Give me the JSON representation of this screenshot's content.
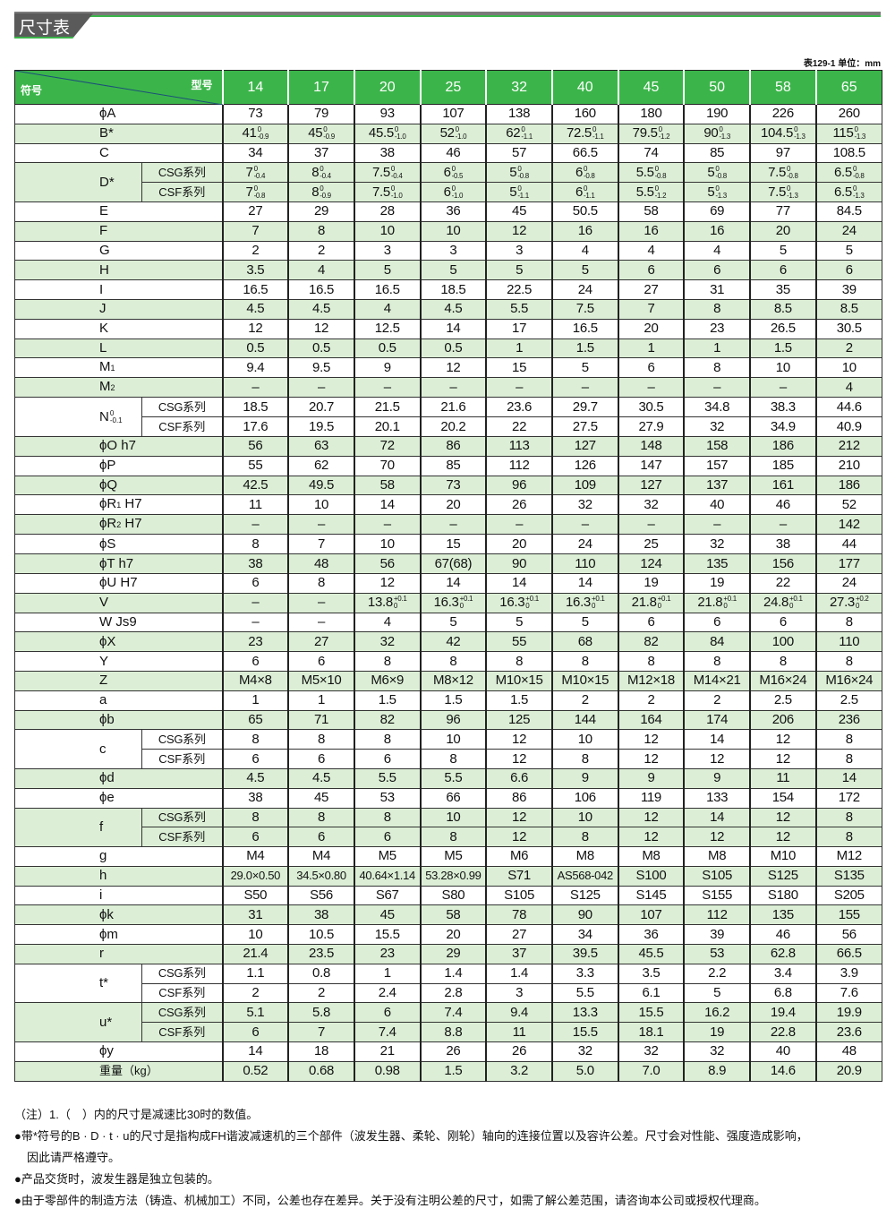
{
  "section_title": "尺寸表",
  "table_note": "表129-1 单位：mm",
  "header": {
    "model_label": "型号",
    "symbol_label": "符号",
    "models": [
      "14",
      "17",
      "20",
      "25",
      "32",
      "40",
      "45",
      "50",
      "58",
      "65"
    ]
  },
  "colors": {
    "header": "#3bb54a",
    "stripe": "#dcefd6",
    "banner": "#5a5a5a"
  },
  "rows": [
    {
      "label": {
        "t": "ϕA"
      },
      "values": [
        "73",
        "79",
        "93",
        "107",
        "138",
        "160",
        "180",
        "190",
        "226",
        "260"
      ]
    },
    {
      "label": {
        "t": "B*"
      },
      "values": [
        {
          "v": "41",
          "up": "0",
          "lo": "-0.9"
        },
        {
          "v": "45",
          "up": "0",
          "lo": "-0.9"
        },
        {
          "v": "45.5",
          "up": "0",
          "lo": "-1.0"
        },
        {
          "v": "52",
          "up": "0",
          "lo": "-1.0"
        },
        {
          "v": "62",
          "up": "0",
          "lo": "-1.1"
        },
        {
          "v": "72.5",
          "up": "0",
          "lo": "-1.1"
        },
        {
          "v": "79.5",
          "up": "0",
          "lo": "-1.2"
        },
        {
          "v": "90",
          "up": "0",
          "lo": "-1.3"
        },
        {
          "v": "104.5",
          "up": "0",
          "lo": "-1.3"
        },
        {
          "v": "115",
          "up": "0",
          "lo": "-1.3"
        }
      ]
    },
    {
      "label": {
        "t": "C"
      },
      "values": [
        "34",
        "37",
        "38",
        "46",
        "57",
        "66.5",
        "74",
        "85",
        "97",
        "108.5"
      ]
    },
    {
      "label": {
        "t": "D*"
      },
      "series": [
        {
          "name": "CSG系列",
          "values": [
            {
              "v": "7",
              "up": "0",
              "lo": "-0.4"
            },
            {
              "v": "8",
              "up": "0",
              "lo": "-0.4"
            },
            {
              "v": "7.5",
              "up": "0",
              "lo": "-0.4"
            },
            {
              "v": "6",
              "up": "0",
              "lo": "-0.5"
            },
            {
              "v": "5",
              "up": "0",
              "lo": "-0.8"
            },
            {
              "v": "6",
              "up": "0",
              "lo": "-0.8"
            },
            {
              "v": "5.5",
              "up": "0",
              "lo": "-0.8"
            },
            {
              "v": "5",
              "up": "0",
              "lo": "-0.8"
            },
            {
              "v": "7.5",
              "up": "0",
              "lo": "-0.8"
            },
            {
              "v": "6.5",
              "up": "0",
              "lo": "-0.8"
            }
          ]
        },
        {
          "name": "CSF系列",
          "values": [
            {
              "v": "7",
              "up": "0",
              "lo": "-0.8"
            },
            {
              "v": "8",
              "up": "0",
              "lo": "-0.9"
            },
            {
              "v": "7.5",
              "up": "0",
              "lo": "-1.0"
            },
            {
              "v": "6",
              "up": "0",
              "lo": "-1.0"
            },
            {
              "v": "5",
              "up": "0",
              "lo": "-1.1"
            },
            {
              "v": "6",
              "up": "0",
              "lo": "-1.1"
            },
            {
              "v": "5.5",
              "up": "0",
              "lo": "-1.2"
            },
            {
              "v": "5",
              "up": "0",
              "lo": "-1.3"
            },
            {
              "v": "7.5",
              "up": "0",
              "lo": "-1.3"
            },
            {
              "v": "6.5",
              "up": "0",
              "lo": "-1.3"
            }
          ]
        }
      ]
    },
    {
      "label": {
        "t": "E"
      },
      "values": [
        "27",
        "29",
        "28",
        "36",
        "45",
        "50.5",
        "58",
        "69",
        "77",
        "84.5"
      ]
    },
    {
      "label": {
        "t": "F"
      },
      "values": [
        "7",
        "8",
        "10",
        "10",
        "12",
        "16",
        "16",
        "16",
        "20",
        "24"
      ]
    },
    {
      "label": {
        "t": "G"
      },
      "values": [
        "2",
        "2",
        "3",
        "3",
        "3",
        "4",
        "4",
        "4",
        "5",
        "5"
      ]
    },
    {
      "label": {
        "t": "H"
      },
      "values": [
        "3.5",
        "4",
        "5",
        "5",
        "5",
        "5",
        "6",
        "6",
        "6",
        "6"
      ]
    },
    {
      "label": {
        "t": "I"
      },
      "values": [
        "16.5",
        "16.5",
        "16.5",
        "18.5",
        "22.5",
        "24",
        "27",
        "31",
        "35",
        "39"
      ]
    },
    {
      "label": {
        "t": "J"
      },
      "values": [
        "4.5",
        "4.5",
        "4",
        "4.5",
        "5.5",
        "7.5",
        "7",
        "8",
        "8.5",
        "8.5"
      ]
    },
    {
      "label": {
        "t": "K"
      },
      "values": [
        "12",
        "12",
        "12.5",
        "14",
        "17",
        "16.5",
        "20",
        "23",
        "26.5",
        "30.5"
      ]
    },
    {
      "label": {
        "t": "L"
      },
      "values": [
        "0.5",
        "0.5",
        "0.5",
        "0.5",
        "1",
        "1.5",
        "1",
        "1",
        "1.5",
        "2"
      ]
    },
    {
      "label": {
        "t": "M",
        "sub": "1"
      },
      "values": [
        "9.4",
        "9.5",
        "9",
        "12",
        "15",
        "5",
        "6",
        "8",
        "10",
        "10"
      ]
    },
    {
      "label": {
        "t": "M",
        "sub": "2"
      },
      "values": [
        "–",
        "–",
        "–",
        "–",
        "–",
        "–",
        "–",
        "–",
        "–",
        "4"
      ]
    },
    {
      "label": {
        "t": "N",
        "up": "0",
        "lo": "-0.1"
      },
      "series": [
        {
          "name": "CSG系列",
          "values": [
            "18.5",
            "20.7",
            "21.5",
            "21.6",
            "23.6",
            "29.7",
            "30.5",
            "34.8",
            "38.3",
            "44.6"
          ]
        },
        {
          "name": "CSF系列",
          "values": [
            "17.6",
            "19.5",
            "20.1",
            "20.2",
            "22",
            "27.5",
            "27.9",
            "32",
            "34.9",
            "40.9"
          ]
        }
      ]
    },
    {
      "label": {
        "t": "ϕO h7"
      },
      "values": [
        "56",
        "63",
        "72",
        "86",
        "113",
        "127",
        "148",
        "158",
        "186",
        "212"
      ]
    },
    {
      "label": {
        "t": "ϕP"
      },
      "values": [
        "55",
        "62",
        "70",
        "85",
        "112",
        "126",
        "147",
        "157",
        "185",
        "210"
      ]
    },
    {
      "label": {
        "t": "ϕQ"
      },
      "values": [
        "42.5",
        "49.5",
        "58",
        "73",
        "96",
        "109",
        "127",
        "137",
        "161",
        "186"
      ]
    },
    {
      "label": {
        "t": "ϕR",
        "sub": "1",
        "after": " H7"
      },
      "values": [
        "11",
        "10",
        "14",
        "20",
        "26",
        "32",
        "32",
        "40",
        "46",
        "52"
      ]
    },
    {
      "label": {
        "t": "ϕR",
        "sub": "2",
        "after": " H7"
      },
      "values": [
        "–",
        "–",
        "–",
        "–",
        "–",
        "–",
        "–",
        "–",
        "–",
        "142"
      ]
    },
    {
      "label": {
        "t": "ϕS"
      },
      "values": [
        "8",
        "7",
        "10",
        "15",
        "20",
        "24",
        "25",
        "32",
        "38",
        "44"
      ]
    },
    {
      "label": {
        "t": "ϕT h7"
      },
      "values": [
        "38",
        "48",
        "56",
        "67(68)",
        "90",
        "110",
        "124",
        "135",
        "156",
        "177"
      ]
    },
    {
      "label": {
        "t": "ϕU H7"
      },
      "values": [
        "6",
        "8",
        "12",
        "14",
        "14",
        "14",
        "19",
        "19",
        "22",
        "24"
      ]
    },
    {
      "label": {
        "t": "V"
      },
      "values": [
        "–",
        "–",
        {
          "v": "13.8",
          "up": "+0.1",
          "lo": "0"
        },
        {
          "v": "16.3",
          "up": "+0.1",
          "lo": "0"
        },
        {
          "v": "16.3",
          "up": "+0.1",
          "lo": "0"
        },
        {
          "v": "16.3",
          "up": "+0.1",
          "lo": "0"
        },
        {
          "v": "21.8",
          "up": "+0.1",
          "lo": "0"
        },
        {
          "v": "21.8",
          "up": "+0.1",
          "lo": "0"
        },
        {
          "v": "24.8",
          "up": "+0.1",
          "lo": "0"
        },
        {
          "v": "27.3",
          "up": "+0.2",
          "lo": "0"
        }
      ]
    },
    {
      "label": {
        "t": "W Js9"
      },
      "values": [
        "–",
        "–",
        "4",
        "5",
        "5",
        "5",
        "6",
        "6",
        "6",
        "8"
      ]
    },
    {
      "label": {
        "t": "ϕX"
      },
      "values": [
        "23",
        "27",
        "32",
        "42",
        "55",
        "68",
        "82",
        "84",
        "100",
        "110"
      ]
    },
    {
      "label": {
        "t": "Y"
      },
      "values": [
        "6",
        "6",
        "8",
        "8",
        "8",
        "8",
        "8",
        "8",
        "8",
        "8"
      ]
    },
    {
      "label": {
        "t": "Z"
      },
      "values": [
        "M4×8",
        "M5×10",
        "M6×9",
        "M8×12",
        "M10×15",
        "M10×15",
        "M12×18",
        "M14×21",
        "M16×24",
        "M16×24"
      ]
    },
    {
      "label": {
        "t": "a"
      },
      "values": [
        "1",
        "1",
        "1.5",
        "1.5",
        "1.5",
        "2",
        "2",
        "2",
        "2.5",
        "2.5"
      ]
    },
    {
      "label": {
        "t": "ϕb"
      },
      "values": [
        "65",
        "71",
        "82",
        "96",
        "125",
        "144",
        "164",
        "174",
        "206",
        "236"
      ]
    },
    {
      "label": {
        "t": "c"
      },
      "series": [
        {
          "name": "CSG系列",
          "values": [
            "8",
            "8",
            "8",
            "10",
            "12",
            "10",
            "12",
            "14",
            "12",
            "8"
          ]
        },
        {
          "name": "CSF系列",
          "values": [
            "6",
            "6",
            "6",
            "8",
            "12",
            "8",
            "12",
            "12",
            "12",
            "8"
          ]
        }
      ]
    },
    {
      "label": {
        "t": "ϕd"
      },
      "values": [
        "4.5",
        "4.5",
        "5.5",
        "5.5",
        "6.6",
        "9",
        "9",
        "9",
        "11",
        "14"
      ]
    },
    {
      "label": {
        "t": "ϕe"
      },
      "values": [
        "38",
        "45",
        "53",
        "66",
        "86",
        "106",
        "119",
        "133",
        "154",
        "172"
      ]
    },
    {
      "label": {
        "t": "f"
      },
      "series": [
        {
          "name": "CSG系列",
          "values": [
            "8",
            "8",
            "8",
            "10",
            "12",
            "10",
            "12",
            "14",
            "12",
            "8"
          ]
        },
        {
          "name": "CSF系列",
          "values": [
            "6",
            "6",
            "6",
            "8",
            "12",
            "8",
            "12",
            "12",
            "12",
            "8"
          ]
        }
      ]
    },
    {
      "label": {
        "t": "g"
      },
      "values": [
        "M4",
        "M4",
        "M5",
        "M5",
        "M6",
        "M8",
        "M8",
        "M8",
        "M10",
        "M12"
      ]
    },
    {
      "label": {
        "t": "h"
      },
      "values": [
        "29.0×0.50",
        "34.5×0.80",
        "40.64×1.14",
        "53.28×0.99",
        "S71",
        "AS568-042",
        "S100",
        "S105",
        "S125",
        "S135"
      ]
    },
    {
      "label": {
        "t": "i"
      },
      "values": [
        "S50",
        "S56",
        "S67",
        "S80",
        "S105",
        "S125",
        "S145",
        "S155",
        "S180",
        "S205"
      ]
    },
    {
      "label": {
        "t": "ϕk"
      },
      "values": [
        "31",
        "38",
        "45",
        "58",
        "78",
        "90",
        "107",
        "112",
        "135",
        "155"
      ]
    },
    {
      "label": {
        "t": "ϕm"
      },
      "values": [
        "10",
        "10.5",
        "15.5",
        "20",
        "27",
        "34",
        "36",
        "39",
        "46",
        "56"
      ]
    },
    {
      "label": {
        "t": "r"
      },
      "values": [
        "21.4",
        "23.5",
        "23",
        "29",
        "37",
        "39.5",
        "45.5",
        "53",
        "62.8",
        "66.5"
      ]
    },
    {
      "label": {
        "t": "t*"
      },
      "series": [
        {
          "name": "CSG系列",
          "values": [
            "1.1",
            "0.8",
            "1",
            "1.4",
            "1.4",
            "3.3",
            "3.5",
            "2.2",
            "3.4",
            "3.9"
          ]
        },
        {
          "name": "CSF系列",
          "values": [
            "2",
            "2",
            "2.4",
            "2.8",
            "3",
            "5.5",
            "6.1",
            "5",
            "6.8",
            "7.6"
          ]
        }
      ]
    },
    {
      "label": {
        "t": "u*"
      },
      "series": [
        {
          "name": "CSG系列",
          "values": [
            "5.1",
            "5.8",
            "6",
            "7.4",
            "9.4",
            "13.3",
            "15.5",
            "16.2",
            "19.4",
            "19.9"
          ]
        },
        {
          "name": "CSF系列",
          "values": [
            "6",
            "7",
            "7.4",
            "8.8",
            "11",
            "15.5",
            "18.1",
            "19",
            "22.8",
            "23.6"
          ]
        }
      ]
    },
    {
      "label": {
        "t": "ϕy"
      },
      "values": [
        "14",
        "18",
        "21",
        "26",
        "26",
        "32",
        "32",
        "32",
        "40",
        "48"
      ]
    },
    {
      "label": {
        "t": "重量（kg）"
      },
      "values": [
        "0.52",
        "0.68",
        "0.98",
        "1.5",
        "3.2",
        "5.0",
        "7.0",
        "8.9",
        "14.6",
        "20.9"
      ]
    }
  ],
  "notes": [
    "（注）1.（　）内的尺寸是减速比30时的数值。",
    "●带*符号的B · D · t · u的尺寸是指构成FH谐波减速机的三个部件（波发生器、柔轮、刚轮）轴向的连接位置以及容许公差。尺寸会对性能、强度造成影响，",
    "因此请严格遵守。",
    "●产品交货时，波发生器是独立包装的。",
    "●由于零部件的制造方法（铸造、机械加工）不同，公差也存在差异。关于没有注明公差的尺寸，如需了解公差范围，请咨询本公司或授权代理商。"
  ]
}
